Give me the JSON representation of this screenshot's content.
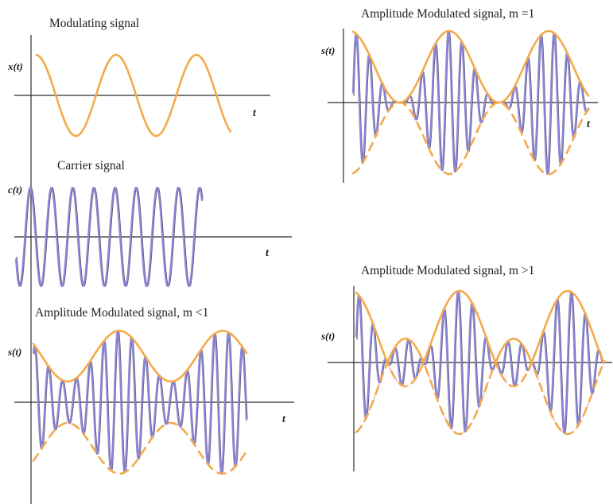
{
  "panels": {
    "modulating": {
      "title": "Modulating signal",
      "y_label": "x(t)",
      "t_label": "t"
    },
    "carrier": {
      "title": "Carrier signal",
      "y_label": "c(t)",
      "t_label": "t"
    },
    "am_under": {
      "title": "Amplitude Modulated signal, m <1",
      "y_label": "s(t)",
      "t_label": "t"
    },
    "am_equal": {
      "title": "Amplitude Modulated signal, m =1",
      "y_label": "s(t)",
      "t_label": "t"
    },
    "am_over": {
      "title": "Amplitude Modulated signal, m >1",
      "y_label": "s(t)"
    }
  },
  "colors": {
    "message": "#f4a94a",
    "carrier": "#8f86d6",
    "overmod_envelope": "#e8a7b7",
    "axis": "#2b2b2b"
  }
}
